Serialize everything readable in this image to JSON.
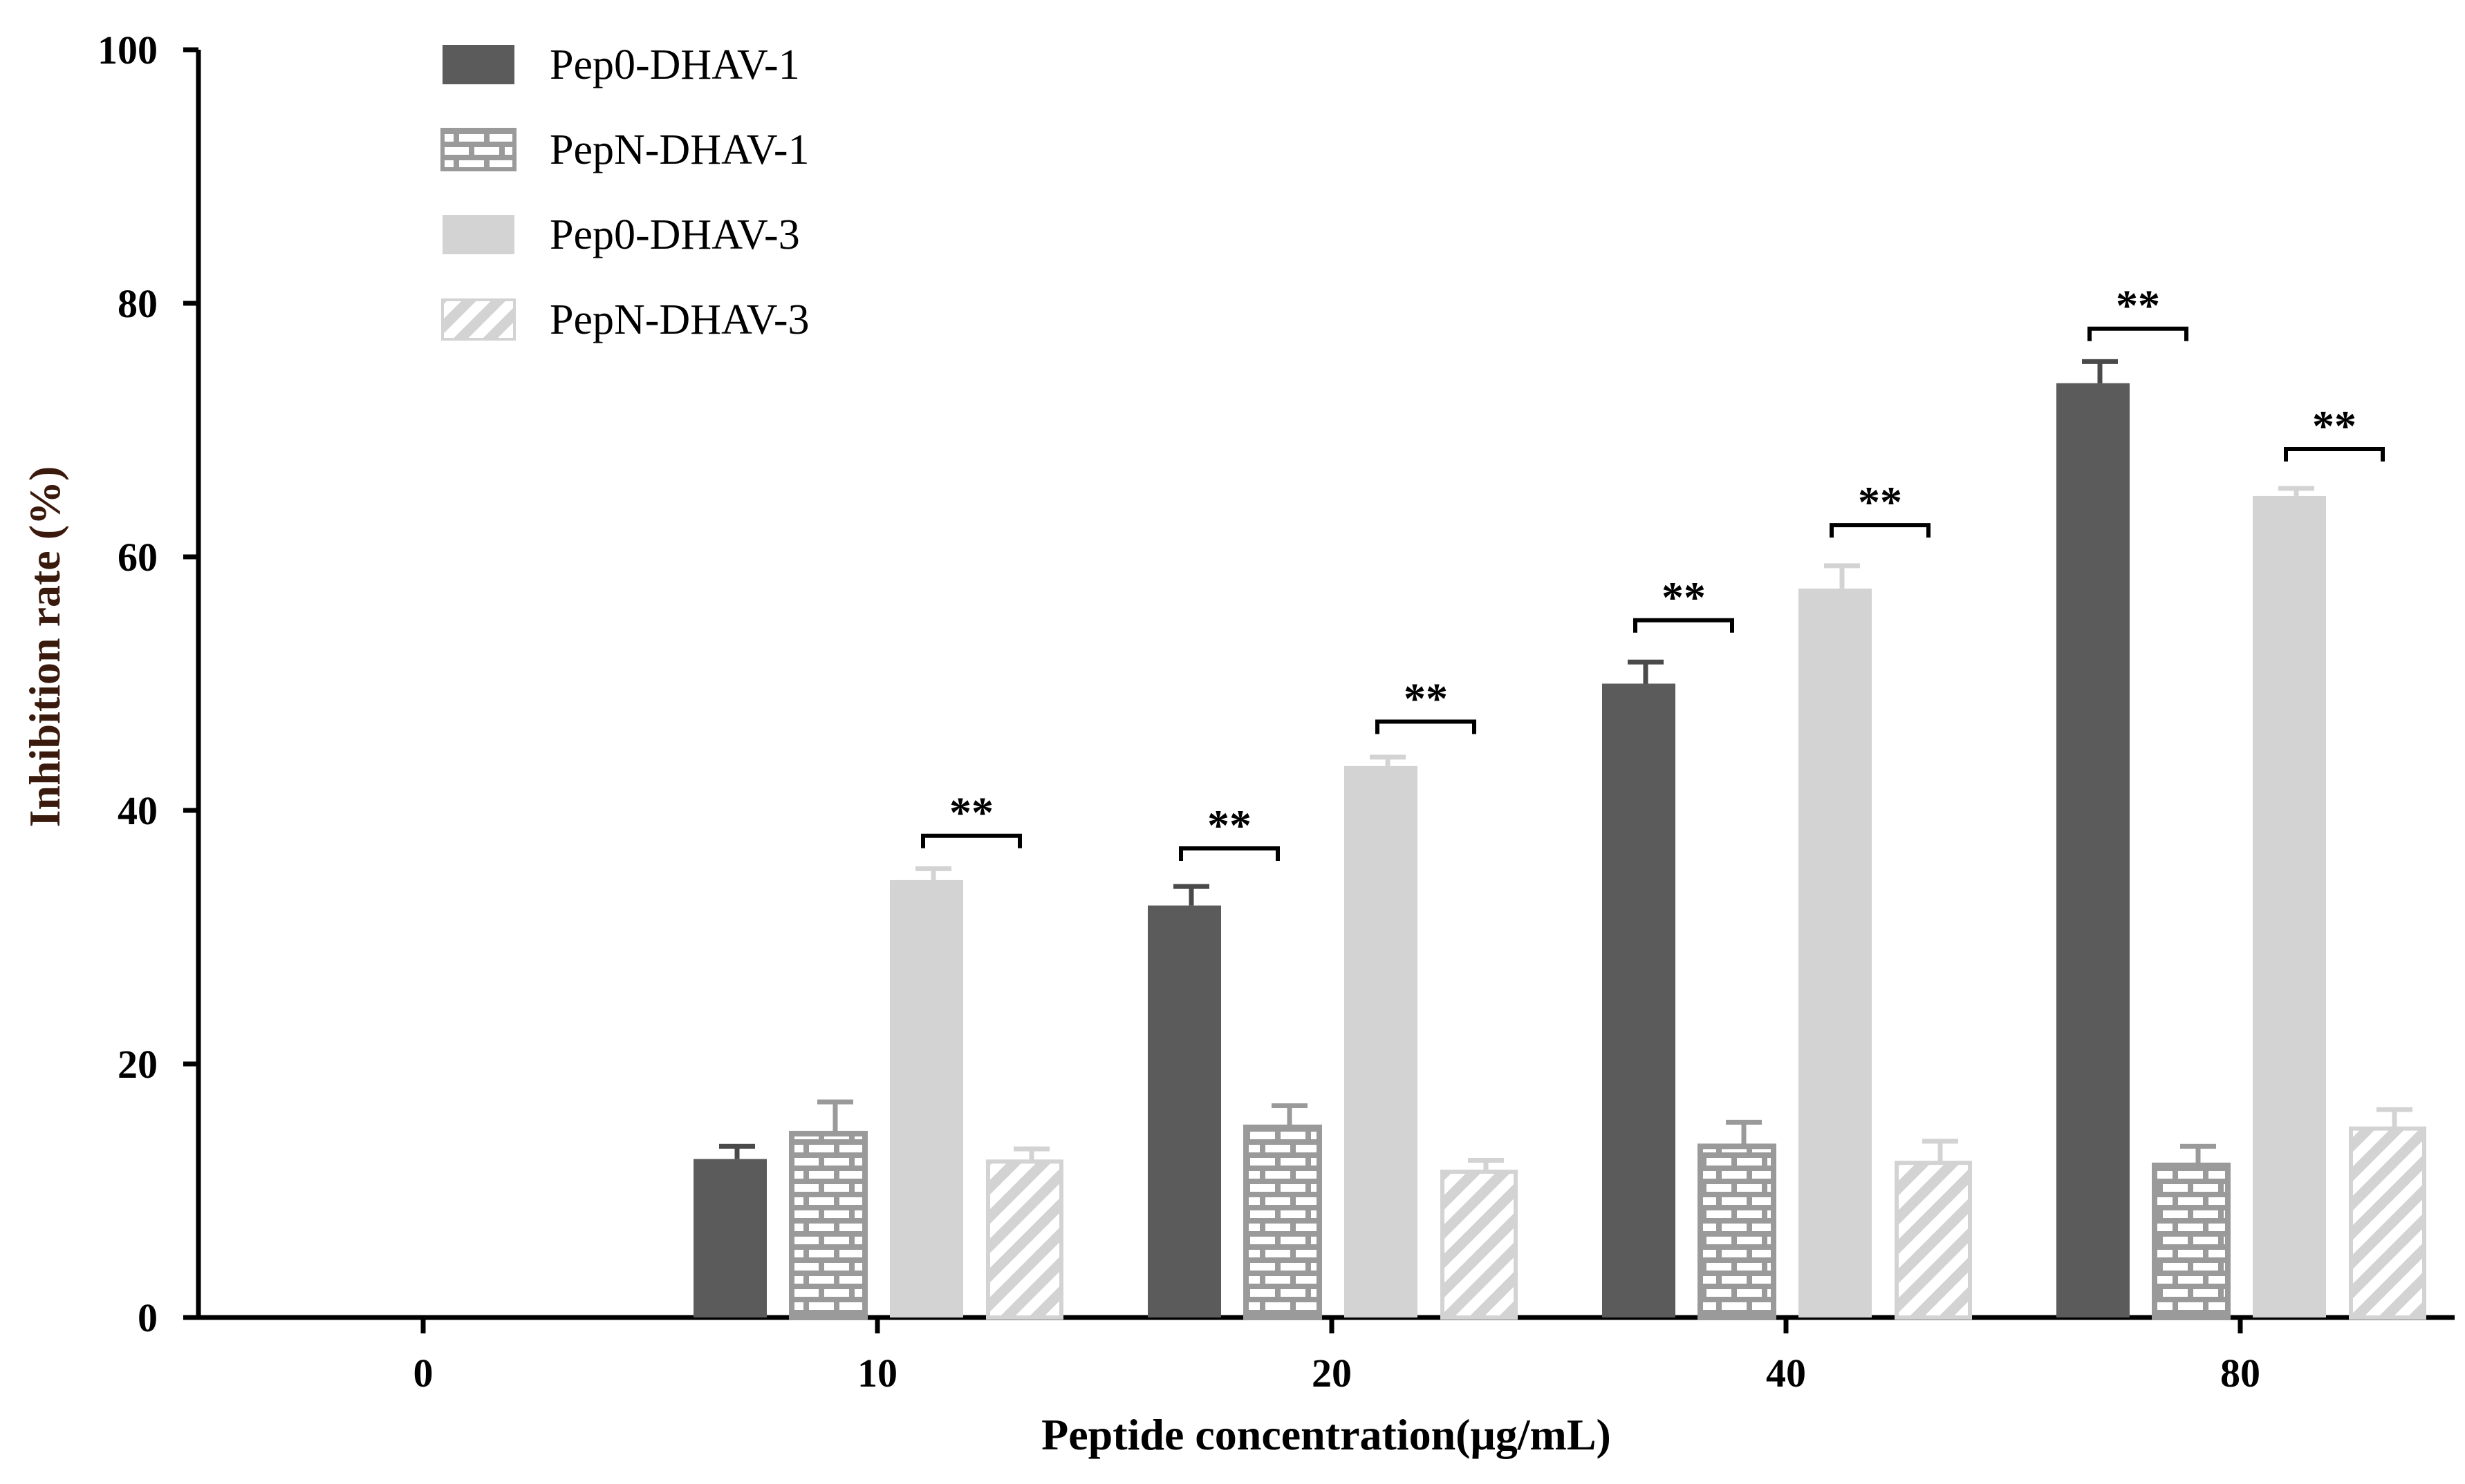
{
  "chart_data": {
    "type": "bar",
    "title": "",
    "xlabel": "Peptide concentration(μg/mL)",
    "ylabel": "Inhibition rate (%)",
    "ylim": [
      0,
      100
    ],
    "yticks": [
      "0",
      "20",
      "40",
      "60",
      "80",
      "100"
    ],
    "ytick_values": [
      0,
      20,
      40,
      60,
      80,
      100
    ],
    "categories": [
      "0",
      "10",
      "20",
      "40",
      "80"
    ],
    "legend_position": "top-left",
    "series": [
      {
        "name": "Pep0-DHAV-1",
        "pattern": "solid-dark",
        "color": "#5b5b5b",
        "values": [
          null,
          12.5,
          32.5,
          50.0,
          73.7
        ],
        "errors": [
          null,
          1.0,
          1.5,
          1.7,
          1.7
        ]
      },
      {
        "name": "PepN-DHAV-1",
        "pattern": "brick",
        "color": "#9a9a9a",
        "values": [
          null,
          14.5,
          15.0,
          13.5,
          12.0
        ],
        "errors": [
          null,
          2.5,
          1.7,
          1.9,
          1.5
        ]
      },
      {
        "name": "Pep0-DHAV-3",
        "pattern": "solid-light",
        "color": "#d3d3d3",
        "values": [
          null,
          34.5,
          43.5,
          57.5,
          64.8
        ],
        "errors": [
          null,
          0.9,
          0.7,
          1.8,
          0.6
        ]
      },
      {
        "name": "PepN-DHAV-3",
        "pattern": "diagonal",
        "color": "#d3d3d3",
        "values": [
          null,
          12.3,
          11.5,
          12.2,
          14.9
        ],
        "errors": [
          null,
          1.0,
          0.9,
          1.7,
          1.5
        ]
      }
    ],
    "significance": [
      {
        "category": "10",
        "series": "Pep0-DHAV-3",
        "y": 38,
        "label": "**"
      },
      {
        "category": "20",
        "series": "Pep0-DHAV-1",
        "y": 37,
        "label": "**"
      },
      {
        "category": "20",
        "series": "Pep0-DHAV-3",
        "y": 47,
        "label": "**"
      },
      {
        "category": "40",
        "series": "Pep0-DHAV-1",
        "y": 55,
        "label": "**"
      },
      {
        "category": "40",
        "series": "Pep0-DHAV-3",
        "y": 62.5,
        "label": "**"
      },
      {
        "category": "80",
        "series": "Pep0-DHAV-1",
        "y": 78,
        "label": "**"
      },
      {
        "category": "80",
        "series": "Pep0-DHAV-3",
        "y": 68.5,
        "label": "**"
      }
    ]
  }
}
